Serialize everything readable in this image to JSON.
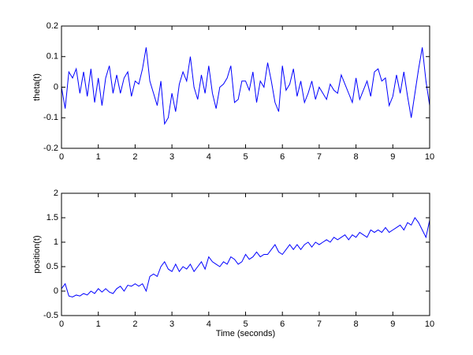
{
  "chart_data": [
    {
      "type": "line",
      "ylabel": "theta(t)",
      "x": [
        0,
        0.1,
        0.2,
        0.3,
        0.4,
        0.5,
        0.6,
        0.7,
        0.8,
        0.9,
        1,
        1.1,
        1.2,
        1.3,
        1.4,
        1.5,
        1.6,
        1.7,
        1.8,
        1.9,
        2,
        2.1,
        2.2,
        2.3,
        2.4,
        2.5,
        2.6,
        2.7,
        2.8,
        2.9,
        3,
        3.1,
        3.2,
        3.3,
        3.4,
        3.5,
        3.6,
        3.7,
        3.8,
        3.9,
        4,
        4.1,
        4.2,
        4.3,
        4.4,
        4.5,
        4.6,
        4.7,
        4.8,
        4.9,
        5,
        5.1,
        5.2,
        5.3,
        5.4,
        5.5,
        5.6,
        5.7,
        5.8,
        5.9,
        6,
        6.1,
        6.2,
        6.3,
        6.4,
        6.5,
        6.6,
        6.7,
        6.8,
        6.9,
        7,
        7.1,
        7.2,
        7.3,
        7.4,
        7.5,
        7.6,
        7.7,
        7.8,
        7.9,
        8,
        8.1,
        8.2,
        8.3,
        8.4,
        8.5,
        8.6,
        8.7,
        8.8,
        8.9,
        9,
        9.1,
        9.2,
        9.3,
        9.4,
        9.5,
        9.6,
        9.7,
        9.8,
        9.9,
        10
      ],
      "series": [
        {
          "color": "#0000ff",
          "values": [
            0,
            -0.07,
            0.05,
            0.03,
            0.06,
            -0.02,
            0.05,
            -0.03,
            0.06,
            -0.05,
            0.03,
            -0.06,
            0.03,
            0.07,
            -0.02,
            0.04,
            -0.02,
            0.03,
            0.05,
            -0.03,
            0.02,
            0.01,
            0.06,
            0.13,
            0.02,
            -0.02,
            -0.06,
            0.02,
            -0.12,
            -0.1,
            -0.02,
            -0.08,
            0.01,
            0.05,
            0.02,
            0.1,
            0,
            -0.04,
            0.04,
            -0.02,
            0.07,
            -0.02,
            -0.07,
            0,
            0.01,
            0.03,
            0.07,
            -0.05,
            -0.04,
            0.02,
            0.02,
            -0.01,
            0.05,
            -0.05,
            0.02,
            0,
            0.08,
            0.02,
            -0.05,
            -0.08,
            0.07,
            -0.01,
            0.01,
            0.06,
            -0.03,
            0.02,
            -0.05,
            -0.02,
            0.02,
            -0.04,
            0,
            -0.02,
            -0.04,
            0.01,
            -0.01,
            -0.02,
            0.04,
            0.01,
            -0.02,
            -0.05,
            0.03,
            -0.04,
            -0.01,
            0.02,
            -0.03,
            0.05,
            0.06,
            0.02,
            0.03,
            -0.06,
            -0.03,
            0.04,
            -0.02,
            0.05,
            -0.03,
            -0.1,
            -0.02,
            0.06,
            0.13,
            0.02,
            -0.06
          ]
        }
      ],
      "xlim": [
        0,
        10
      ],
      "xticks": [
        0,
        1,
        2,
        3,
        4,
        5,
        6,
        7,
        8,
        9,
        10
      ],
      "ylim": [
        -0.2,
        0.2
      ],
      "yticks": [
        -0.2,
        -0.1,
        0,
        0.1,
        0.2
      ]
    },
    {
      "type": "line",
      "xlabel": "Time (seconds)",
      "ylabel": "position(t)",
      "x": [
        0,
        0.1,
        0.2,
        0.3,
        0.4,
        0.5,
        0.6,
        0.7,
        0.8,
        0.9,
        1,
        1.1,
        1.2,
        1.3,
        1.4,
        1.5,
        1.6,
        1.7,
        1.8,
        1.9,
        2,
        2.1,
        2.2,
        2.3,
        2.4,
        2.5,
        2.6,
        2.7,
        2.8,
        2.9,
        3,
        3.1,
        3.2,
        3.3,
        3.4,
        3.5,
        3.6,
        3.7,
        3.8,
        3.9,
        4,
        4.1,
        4.2,
        4.3,
        4.4,
        4.5,
        4.6,
        4.7,
        4.8,
        4.9,
        5,
        5.1,
        5.2,
        5.3,
        5.4,
        5.5,
        5.6,
        5.7,
        5.8,
        5.9,
        6,
        6.1,
        6.2,
        6.3,
        6.4,
        6.5,
        6.6,
        6.7,
        6.8,
        6.9,
        7,
        7.1,
        7.2,
        7.3,
        7.4,
        7.5,
        7.6,
        7.7,
        7.8,
        7.9,
        8,
        8.1,
        8.2,
        8.3,
        8.4,
        8.5,
        8.6,
        8.7,
        8.8,
        8.9,
        9,
        9.1,
        9.2,
        9.3,
        9.4,
        9.5,
        9.6,
        9.7,
        9.8,
        9.9,
        10
      ],
      "series": [
        {
          "color": "#0000ff",
          "values": [
            0.05,
            0.15,
            -0.1,
            -0.12,
            -0.08,
            -0.1,
            -0.05,
            -0.08,
            0,
            -0.05,
            0.05,
            -0.02,
            0.05,
            -0.02,
            -0.05,
            0.05,
            0.1,
            0,
            0.12,
            0.1,
            0.15,
            0.1,
            0.15,
            0,
            0.3,
            0.35,
            0.3,
            0.5,
            0.6,
            0.45,
            0.4,
            0.55,
            0.4,
            0.5,
            0.45,
            0.55,
            0.4,
            0.5,
            0.6,
            0.45,
            0.7,
            0.6,
            0.55,
            0.5,
            0.6,
            0.55,
            0.7,
            0.65,
            0.55,
            0.6,
            0.75,
            0.65,
            0.7,
            0.8,
            0.7,
            0.75,
            0.75,
            0.85,
            0.95,
            0.8,
            0.75,
            0.85,
            0.95,
            0.85,
            0.95,
            0.85,
            0.95,
            1,
            0.9,
            1,
            0.95,
            1,
            1.05,
            1,
            1.1,
            1.05,
            1.1,
            1.15,
            1.05,
            1.15,
            1.1,
            1.2,
            1.15,
            1.1,
            1.25,
            1.2,
            1.25,
            1.2,
            1.3,
            1.2,
            1.25,
            1.3,
            1.35,
            1.25,
            1.4,
            1.35,
            1.5,
            1.4,
            1.25,
            1.1,
            1.45
          ]
        }
      ],
      "xlim": [
        0,
        10
      ],
      "xticks": [
        0,
        1,
        2,
        3,
        4,
        5,
        6,
        7,
        8,
        9,
        10
      ],
      "ylim": [
        -0.5,
        2
      ],
      "yticks": [
        -0.5,
        0,
        0.5,
        1,
        1.5,
        2
      ]
    }
  ]
}
